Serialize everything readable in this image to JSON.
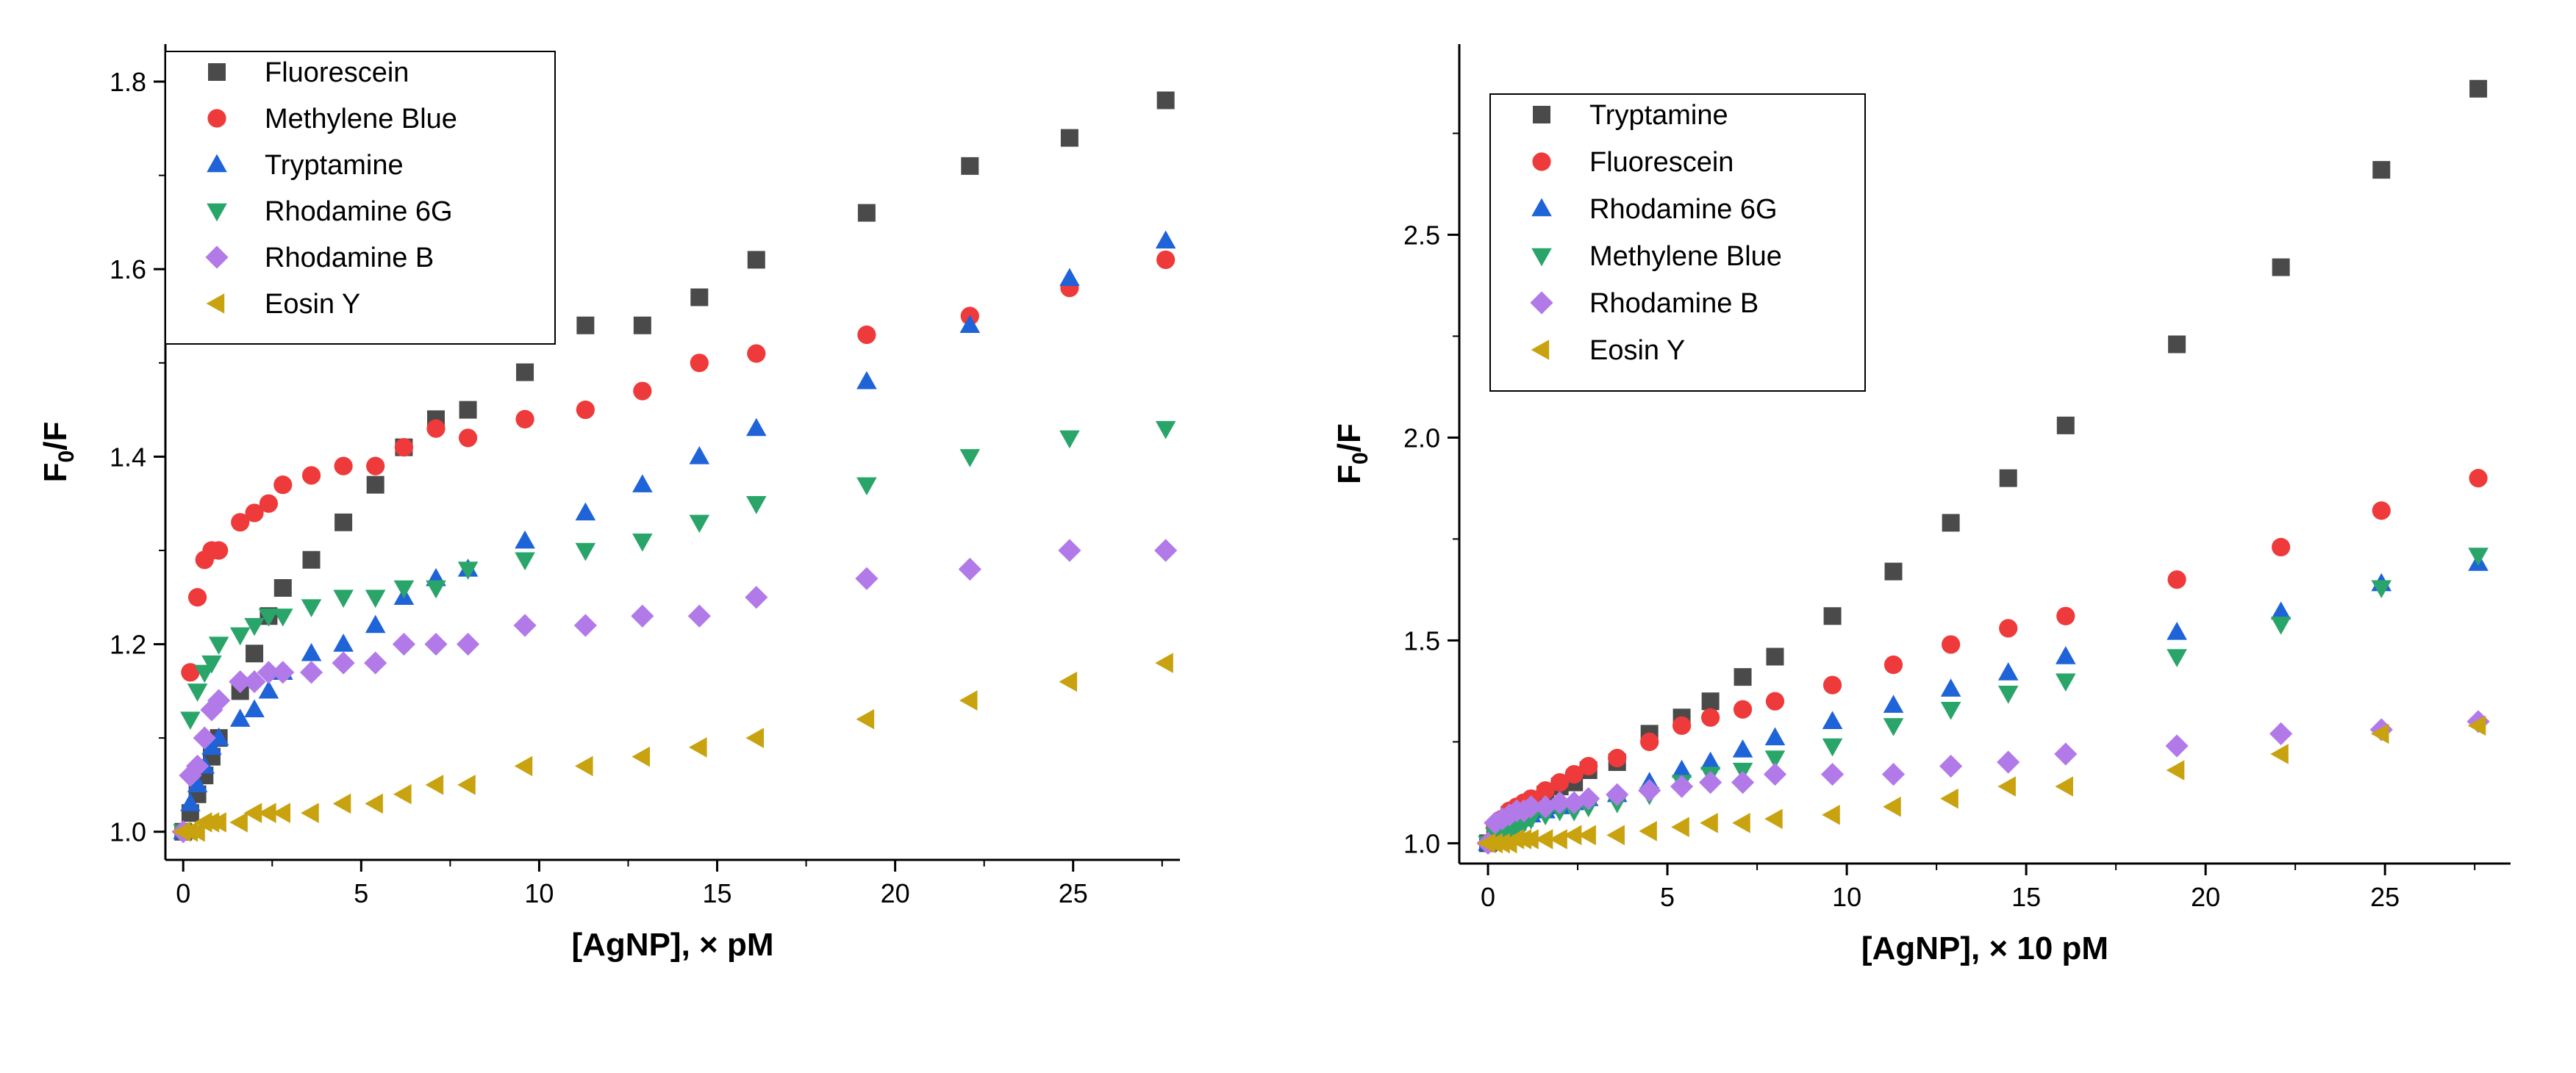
{
  "chart_data": [
    {
      "type": "scatter",
      "title": "",
      "xlabel": "[AgNP], × pM",
      "ylabel_main": "F",
      "ylabel_sub": "0",
      "ylabel_tail": "/F",
      "xlim": [
        -0.5,
        28
      ],
      "ylim": [
        0.97,
        1.84
      ],
      "xticks": [
        0,
        5,
        10,
        15,
        20,
        25
      ],
      "xtick_labels": [
        "0",
        "5",
        "10",
        "15",
        "20",
        "25"
      ],
      "yticks": [
        1.0,
        1.2,
        1.4,
        1.6,
        1.8
      ],
      "ytick_labels": [
        "1.0",
        "1.2",
        "1.4",
        "1.6",
        "1.8"
      ],
      "grid": false,
      "legend_position": "top-left",
      "series": [
        {
          "name": "Fluorescein",
          "marker": "square",
          "color": "#4a4a4a",
          "x": [
            0,
            0.2,
            0.4,
            0.6,
            0.8,
            1.0,
            1.6,
            2.0,
            2.4,
            2.8,
            3.6,
            4.5,
            5.4,
            6.2,
            7.1,
            8.0,
            9.6,
            11.3,
            12.9,
            14.5,
            16.1,
            19.2,
            22.1,
            24.9,
            27.6
          ],
          "y": [
            1.0,
            1.02,
            1.04,
            1.06,
            1.08,
            1.1,
            1.15,
            1.19,
            1.23,
            1.26,
            1.29,
            1.33,
            1.37,
            1.41,
            1.44,
            1.45,
            1.49,
            1.54,
            1.54,
            1.57,
            1.61,
            1.66,
            1.71,
            1.74,
            1.78
          ]
        },
        {
          "name": "Methylene Blue",
          "marker": "circle",
          "color": "#ee3a3a",
          "x": [
            0,
            0.2,
            0.4,
            0.6,
            0.8,
            1.0,
            1.6,
            2.0,
            2.4,
            2.8,
            3.6,
            4.5,
            5.4,
            6.2,
            7.1,
            8.0,
            9.6,
            11.3,
            12.9,
            14.5,
            16.1,
            19.2,
            22.1,
            24.9,
            27.6
          ],
          "y": [
            1.0,
            1.17,
            1.25,
            1.29,
            1.3,
            1.3,
            1.33,
            1.34,
            1.35,
            1.37,
            1.38,
            1.39,
            1.39,
            1.41,
            1.43,
            1.42,
            1.44,
            1.45,
            1.47,
            1.5,
            1.51,
            1.53,
            1.55,
            1.58,
            1.61
          ]
        },
        {
          "name": "Tryptamine",
          "marker": "triangle-up",
          "color": "#1f63d8",
          "x": [
            0,
            0.2,
            0.4,
            0.6,
            0.8,
            1.0,
            1.6,
            2.0,
            2.4,
            2.8,
            3.6,
            4.5,
            5.4,
            6.2,
            7.1,
            8.0,
            9.6,
            11.3,
            12.9,
            14.5,
            16.1,
            19.2,
            22.1,
            24.9,
            27.6
          ],
          "y": [
            1.0,
            1.03,
            1.05,
            1.07,
            1.09,
            1.1,
            1.12,
            1.13,
            1.15,
            1.17,
            1.19,
            1.2,
            1.22,
            1.25,
            1.27,
            1.28,
            1.31,
            1.34,
            1.37,
            1.4,
            1.43,
            1.48,
            1.54,
            1.59,
            1.63
          ]
        },
        {
          "name": "Rhodamine 6G",
          "marker": "triangle-down",
          "color": "#2aa56a",
          "x": [
            0,
            0.2,
            0.4,
            0.6,
            0.8,
            1.0,
            1.6,
            2.0,
            2.4,
            2.8,
            3.6,
            4.5,
            5.4,
            6.2,
            7.1,
            8.0,
            9.6,
            11.3,
            12.9,
            14.5,
            16.1,
            19.2,
            22.1,
            24.9,
            27.6
          ],
          "y": [
            1.0,
            1.12,
            1.15,
            1.17,
            1.18,
            1.2,
            1.21,
            1.22,
            1.23,
            1.23,
            1.24,
            1.25,
            1.25,
            1.26,
            1.26,
            1.28,
            1.29,
            1.3,
            1.31,
            1.33,
            1.35,
            1.37,
            1.4,
            1.42,
            1.43
          ]
        },
        {
          "name": "Rhodamine B",
          "marker": "diamond",
          "color": "#b27ae8",
          "x": [
            0,
            0.2,
            0.4,
            0.6,
            0.8,
            1.0,
            1.6,
            2.0,
            2.4,
            2.8,
            3.6,
            4.5,
            5.4,
            6.2,
            7.1,
            8.0,
            9.6,
            11.3,
            12.9,
            14.5,
            16.1,
            19.2,
            22.1,
            24.9,
            27.6
          ],
          "y": [
            1.0,
            1.06,
            1.07,
            1.1,
            1.13,
            1.14,
            1.16,
            1.16,
            1.17,
            1.17,
            1.17,
            1.18,
            1.18,
            1.2,
            1.2,
            1.2,
            1.22,
            1.22,
            1.23,
            1.23,
            1.25,
            1.27,
            1.28,
            1.3,
            1.3
          ]
        },
        {
          "name": "Eosin Y",
          "marker": "triangle-left",
          "color": "#c9a20f",
          "x": [
            0,
            0.2,
            0.4,
            0.6,
            0.8,
            1.0,
            1.6,
            2.0,
            2.4,
            2.8,
            3.6,
            4.5,
            5.4,
            6.2,
            7.1,
            8.0,
            9.6,
            11.3,
            12.9,
            14.5,
            16.1,
            19.2,
            22.1,
            24.9,
            27.6
          ],
          "y": [
            1.0,
            1.0,
            1.0,
            1.01,
            1.01,
            1.01,
            1.01,
            1.02,
            1.02,
            1.02,
            1.02,
            1.03,
            1.03,
            1.04,
            1.05,
            1.05,
            1.07,
            1.07,
            1.08,
            1.09,
            1.1,
            1.12,
            1.14,
            1.16,
            1.18
          ]
        }
      ]
    },
    {
      "type": "scatter",
      "title": "",
      "xlabel": "[AgNP], × 10 pM",
      "ylabel_main": "F",
      "ylabel_sub": "0",
      "ylabel_tail": "/F",
      "xlim": [
        -0.8,
        28.5
      ],
      "ylim": [
        0.95,
        2.97
      ],
      "xticks": [
        0,
        5,
        10,
        15,
        20,
        25
      ],
      "xtick_labels": [
        "0",
        "5",
        "10",
        "15",
        "20",
        "25"
      ],
      "yticks": [
        1.0,
        1.5,
        2.0,
        2.5
      ],
      "ytick_labels": [
        "1.0",
        "1.5",
        "2.0",
        "2.5"
      ],
      "grid": false,
      "legend_position": "top-left",
      "series": [
        {
          "name": "Tryptamine",
          "marker": "square",
          "color": "#4a4a4a",
          "x": [
            0,
            0.2,
            0.4,
            0.6,
            0.8,
            1.0,
            1.2,
            1.6,
            2.0,
            2.4,
            2.8,
            3.6,
            4.5,
            5.4,
            6.2,
            7.1,
            8.0,
            9.6,
            11.3,
            12.9,
            14.5,
            16.1,
            19.2,
            22.1,
            24.9,
            27.6
          ],
          "y": [
            1.0,
            1.03,
            1.05,
            1.07,
            1.08,
            1.09,
            1.1,
            1.12,
            1.14,
            1.15,
            1.18,
            1.2,
            1.27,
            1.31,
            1.35,
            1.41,
            1.46,
            1.56,
            1.67,
            1.79,
            1.9,
            2.03,
            2.23,
            2.42,
            2.66,
            2.86
          ]
        },
        {
          "name": "Fluorescein",
          "marker": "circle",
          "color": "#ee3a3a",
          "x": [
            0,
            0.2,
            0.4,
            0.6,
            0.8,
            1.0,
            1.2,
            1.6,
            2.0,
            2.4,
            2.8,
            3.6,
            4.5,
            5.4,
            6.2,
            7.1,
            8.0,
            9.6,
            11.3,
            12.9,
            14.5,
            16.1,
            19.2,
            22.1,
            24.9,
            27.6
          ],
          "y": [
            1.0,
            1.04,
            1.06,
            1.08,
            1.09,
            1.1,
            1.11,
            1.13,
            1.15,
            1.17,
            1.19,
            1.21,
            1.25,
            1.29,
            1.31,
            1.33,
            1.35,
            1.39,
            1.44,
            1.49,
            1.53,
            1.56,
            1.65,
            1.73,
            1.82,
            1.9
          ]
        },
        {
          "name": "Rhodamine 6G",
          "marker": "triangle-up",
          "color": "#1f63d8",
          "x": [
            0,
            0.2,
            0.4,
            0.6,
            0.8,
            1.0,
            1.2,
            1.6,
            2.0,
            2.4,
            2.8,
            3.6,
            4.5,
            5.4,
            6.2,
            7.1,
            8.0,
            9.6,
            11.3,
            12.9,
            14.5,
            16.1,
            19.2,
            22.1,
            24.9,
            27.6
          ],
          "y": [
            1.0,
            1.02,
            1.03,
            1.04,
            1.05,
            1.06,
            1.07,
            1.08,
            1.09,
            1.1,
            1.11,
            1.12,
            1.15,
            1.18,
            1.2,
            1.23,
            1.26,
            1.3,
            1.34,
            1.38,
            1.42,
            1.46,
            1.52,
            1.57,
            1.64,
            1.69
          ]
        },
        {
          "name": "Methylene Blue",
          "marker": "triangle-down",
          "color": "#2aa56a",
          "x": [
            0,
            0.2,
            0.4,
            0.6,
            0.8,
            1.0,
            1.2,
            1.6,
            2.0,
            2.4,
            2.8,
            3.6,
            4.5,
            5.4,
            6.2,
            7.1,
            8.0,
            9.6,
            11.3,
            12.9,
            14.5,
            16.1,
            19.2,
            22.1,
            24.9,
            27.6
          ],
          "y": [
            1.0,
            1.02,
            1.03,
            1.03,
            1.04,
            1.05,
            1.06,
            1.07,
            1.08,
            1.08,
            1.09,
            1.1,
            1.12,
            1.15,
            1.17,
            1.18,
            1.21,
            1.24,
            1.29,
            1.33,
            1.37,
            1.4,
            1.46,
            1.54,
            1.63,
            1.71
          ]
        },
        {
          "name": "Rhodamine B",
          "marker": "diamond",
          "color": "#b27ae8",
          "x": [
            0,
            0.2,
            0.4,
            0.6,
            0.8,
            1.0,
            1.2,
            1.6,
            2.0,
            2.4,
            2.8,
            3.6,
            4.5,
            5.4,
            6.2,
            7.1,
            8.0,
            9.6,
            11.3,
            12.9,
            14.5,
            16.1,
            19.2,
            22.1,
            24.9,
            27.6
          ],
          "y": [
            1.0,
            1.05,
            1.06,
            1.07,
            1.08,
            1.08,
            1.09,
            1.09,
            1.1,
            1.1,
            1.11,
            1.12,
            1.13,
            1.14,
            1.15,
            1.15,
            1.17,
            1.17,
            1.17,
            1.19,
            1.2,
            1.22,
            1.24,
            1.27,
            1.28,
            1.3
          ]
        },
        {
          "name": "Eosin Y",
          "marker": "triangle-left",
          "color": "#c9a20f",
          "x": [
            0,
            0.2,
            0.4,
            0.6,
            0.8,
            1.0,
            1.2,
            1.6,
            2.0,
            2.4,
            2.8,
            3.6,
            4.5,
            5.4,
            6.2,
            7.1,
            8.0,
            9.6,
            11.3,
            12.9,
            14.5,
            16.1,
            19.2,
            22.1,
            24.9,
            27.6
          ],
          "y": [
            1.0,
            1.0,
            1.0,
            1.0,
            1.01,
            1.01,
            1.01,
            1.01,
            1.01,
            1.02,
            1.02,
            1.02,
            1.03,
            1.04,
            1.05,
            1.05,
            1.06,
            1.07,
            1.09,
            1.11,
            1.14,
            1.14,
            1.18,
            1.22,
            1.27,
            1.29
          ]
        }
      ]
    }
  ]
}
